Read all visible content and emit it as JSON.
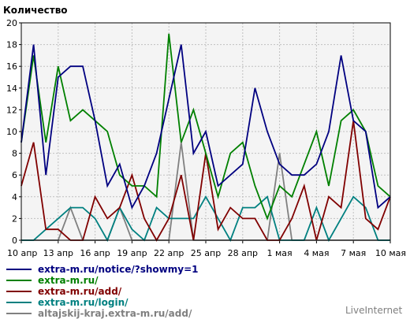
{
  "chart_data": {
    "type": "line",
    "title": "Количество",
    "xlabel": "",
    "ylabel": "",
    "ylim": [
      0,
      20
    ],
    "yticks": [
      0,
      2,
      4,
      6,
      8,
      10,
      12,
      14,
      16,
      18,
      20
    ],
    "x": [
      "10 апр",
      "11 апр",
      "12 апр",
      "13 апр",
      "14 апр",
      "15 апр",
      "16 апр",
      "17 апр",
      "18 апр",
      "19 апр",
      "20 апр",
      "21 апр",
      "22 апр",
      "23 апр",
      "24 апр",
      "25 апр",
      "26 апр",
      "27 апр",
      "28 апр",
      "29 апр",
      "30 апр",
      "1 мая",
      "2 мая",
      "3 мая",
      "4 мая",
      "5 мая",
      "6 мая",
      "7 мая",
      "8 мая",
      "9 мая",
      "10 мая"
    ],
    "xtick_labels": [
      "10 апр",
      "13 апр",
      "16 апр",
      "19 апр",
      "22 апр",
      "25 апр",
      "28 апр",
      "1 мая",
      "4 мая",
      "7 мая",
      "10 мая"
    ],
    "grid": true,
    "legend_position": "bottom",
    "series": [
      {
        "name": "extra-m.ru/notice/?showmy=1",
        "color": "#000080",
        "values": [
          9,
          18,
          6,
          15,
          16,
          16,
          11,
          5,
          7,
          3,
          5,
          8,
          13,
          18,
          8,
          10,
          5,
          6,
          7,
          14,
          10,
          7,
          6,
          6,
          7,
          10,
          17,
          11,
          10,
          3,
          4
        ]
      },
      {
        "name": "extra-m.ru/",
        "color": "#008000",
        "values": [
          9,
          17,
          9,
          16,
          11,
          12,
          11,
          10,
          6,
          5,
          5,
          4,
          19,
          9,
          12,
          8,
          4,
          8,
          9,
          5,
          2,
          5,
          4,
          7,
          10,
          5,
          11,
          12,
          10,
          5,
          4
        ]
      },
      {
        "name": "extra-m.ru/add/",
        "color": "#800000",
        "values": [
          5,
          9,
          1,
          1,
          0,
          0,
          4,
          2,
          3,
          6,
          2,
          0,
          2,
          6,
          0,
          8,
          1,
          3,
          2,
          2,
          0,
          0,
          2,
          5,
          0,
          4,
          3,
          11,
          2,
          1,
          4
        ]
      },
      {
        "name": "extra-m.ru/login/",
        "color": "#008080",
        "values": [
          0,
          0,
          1,
          2,
          3,
          3,
          2,
          0,
          3,
          1,
          0,
          3,
          2,
          2,
          2,
          4,
          2,
          0,
          3,
          3,
          4,
          0,
          0,
          0,
          3,
          0,
          2,
          4,
          3,
          0,
          0
        ]
      },
      {
        "name": "altajskij-kraj.extra-m.ru/add/",
        "color": "#808080",
        "values": [
          0,
          0,
          0,
          0,
          3,
          0,
          0,
          0,
          3,
          0,
          0,
          0,
          0,
          9,
          0,
          0,
          0,
          0,
          0,
          0,
          0,
          8,
          0,
          0,
          0,
          0,
          0,
          0,
          0,
          0,
          0
        ]
      }
    ]
  },
  "credit": "LiveInternet"
}
